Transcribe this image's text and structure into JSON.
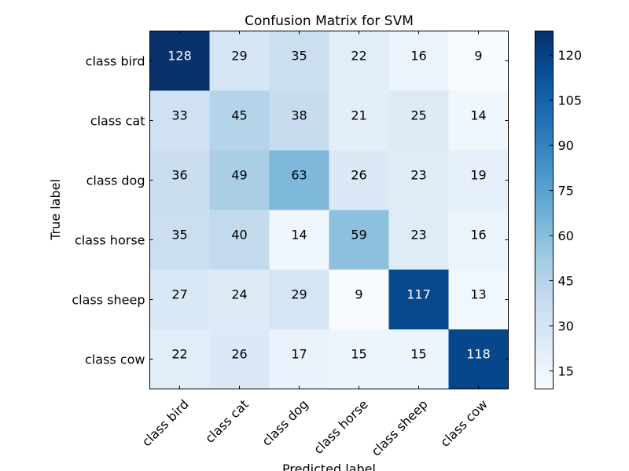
{
  "chart_data": {
    "type": "heatmap",
    "title": "Confusion Matrix for SVM",
    "xlabel": "Predicted label",
    "ylabel": "True label",
    "x_categories": [
      "class bird",
      "class cat",
      "class dog",
      "class horse",
      "class sheep",
      "class cow"
    ],
    "y_categories": [
      "class bird",
      "class cat",
      "class dog",
      "class horse",
      "class sheep",
      "class cow"
    ],
    "values": [
      [
        128,
        29,
        35,
        22,
        16,
        9
      ],
      [
        33,
        45,
        38,
        21,
        25,
        14
      ],
      [
        36,
        49,
        63,
        26,
        23,
        19
      ],
      [
        35,
        40,
        14,
        59,
        23,
        16
      ],
      [
        27,
        24,
        29,
        9,
        117,
        13
      ],
      [
        22,
        26,
        17,
        15,
        15,
        118
      ]
    ],
    "colormap": "Blues",
    "colorbar": {
      "range": [
        9,
        128
      ],
      "ticks": [
        15,
        30,
        45,
        60,
        75,
        90,
        105,
        120
      ]
    },
    "grid": false,
    "legend": "none"
  }
}
